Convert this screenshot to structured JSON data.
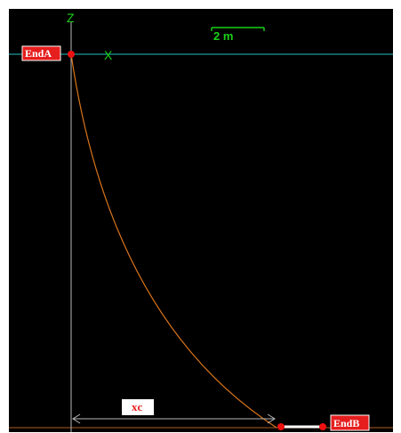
{
  "labels": {
    "z_axis": "Z",
    "x_axis": "X",
    "scale": "2 m",
    "end_a": "EndA",
    "end_b": "EndB",
    "xc": "xc"
  },
  "colors": {
    "background": "#000000",
    "frame": "#ffffff",
    "water_surface": "#1e9a9a",
    "seabed": "#8a4a1e",
    "line": "#d9741a",
    "axis": "#b8b8b8",
    "green": "#19d119",
    "node": "#ee1111",
    "tag_fill": "#e61e1e",
    "xc_box": "#ffffff",
    "seabed_segment": "#ffffff"
  }
}
